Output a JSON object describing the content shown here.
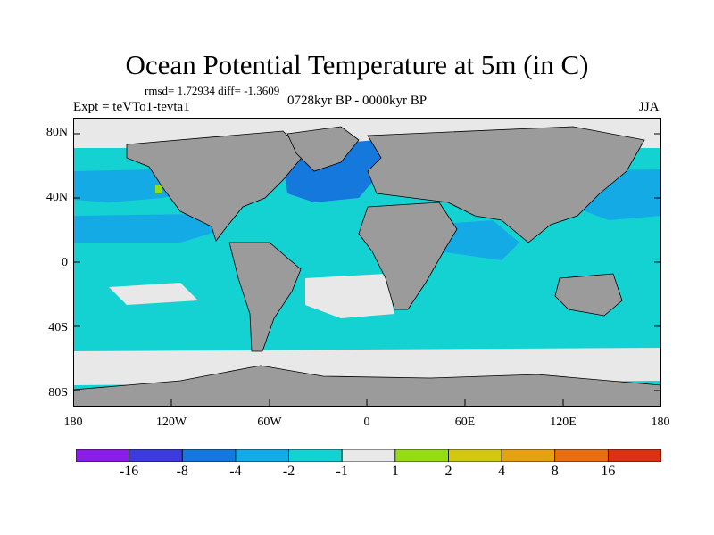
{
  "title": "Ocean Potential Temperature at 5m (in C)",
  "stats": "rmsd= 1.72934 diff= -1.3609",
  "experiment": "Expt = teVTo1-tevta1",
  "period": "0728kyr BP - 0000kyr BP",
  "season": "JJA",
  "y_ticks": [
    "80N",
    "40N",
    "0",
    "40S",
    "80S"
  ],
  "x_ticks": [
    "180",
    "120W",
    "60W",
    "0",
    "60E",
    "120E",
    "180"
  ],
  "colorbar": {
    "labels": [
      "-16",
      "-8",
      "-4",
      "-2",
      "-1",
      "1",
      "2",
      "4",
      "8",
      "16"
    ],
    "colors": [
      "#8a1ee6",
      "#3c3cdc",
      "#1478dc",
      "#14aae6",
      "#14d2d2",
      "#e8e8e8",
      "#96dc14",
      "#d2c814",
      "#e6a014",
      "#e66e14",
      "#dc3214"
    ]
  },
  "map_colors": {
    "land": "#9b9b9b",
    "ocean_cool": "#14d2d2",
    "ocean_cooler": "#14aae6",
    "ocean_coolest": "#1478dc",
    "near_zero": "#e8e8e8",
    "warm": "#96dc14"
  }
}
